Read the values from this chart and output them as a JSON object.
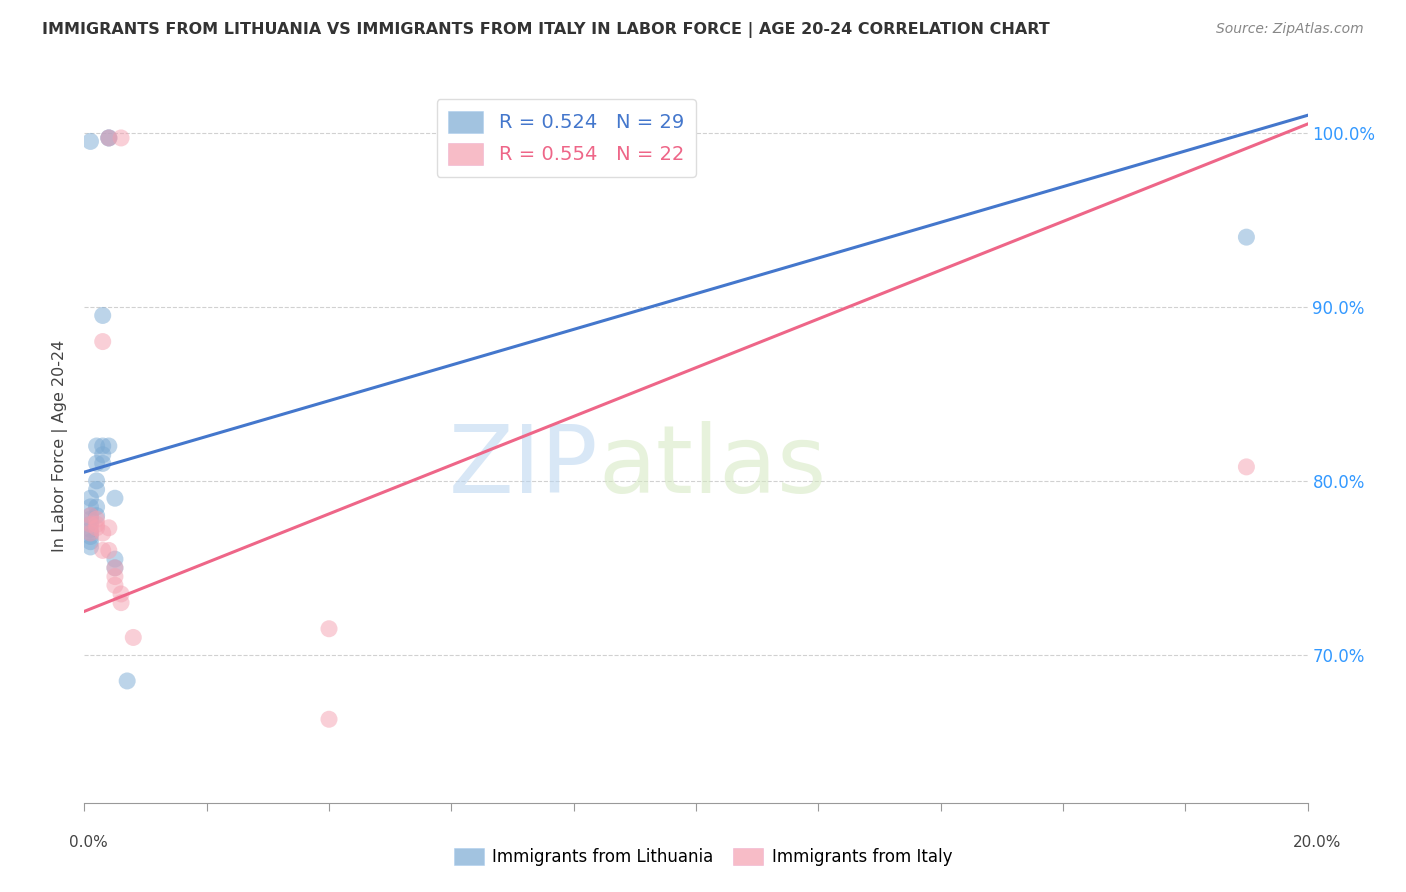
{
  "title": "IMMIGRANTS FROM LITHUANIA VS IMMIGRANTS FROM ITALY IN LABOR FORCE | AGE 20-24 CORRELATION CHART",
  "source": "Source: ZipAtlas.com",
  "ylabel": "In Labor Force | Age 20-24",
  "watermark_part1": "ZIP",
  "watermark_part2": "atlas",
  "legend_blue_R": 0.524,
  "legend_blue_N": 29,
  "legend_pink_R": 0.554,
  "legend_pink_N": 22,
  "legend_blue_label": "Immigrants from Lithuania",
  "legend_pink_label": "Immigrants from Italy",
  "blue_color": "#7BAAD4",
  "pink_color": "#F4A0B0",
  "blue_line_color": "#4477CC",
  "pink_line_color": "#EE6688",
  "xlim": [
    0.0,
    0.2
  ],
  "ylim": [
    0.615,
    1.025
  ],
  "yticks": [
    0.7,
    0.8,
    0.9,
    1.0
  ],
  "xticks": [
    0.0,
    0.02,
    0.04,
    0.06,
    0.08,
    0.1,
    0.12,
    0.14,
    0.16,
    0.18,
    0.2
  ],
  "blue_line": [
    [
      0.0,
      0.805
    ],
    [
      0.2,
      1.01
    ]
  ],
  "pink_line": [
    [
      0.0,
      0.725
    ],
    [
      0.2,
      1.005
    ]
  ],
  "blue_dots": [
    [
      0.001,
      0.995
    ],
    [
      0.004,
      0.997
    ],
    [
      0.004,
      0.997
    ],
    [
      0.004,
      0.82
    ],
    [
      0.003,
      0.895
    ],
    [
      0.003,
      0.82
    ],
    [
      0.003,
      0.815
    ],
    [
      0.003,
      0.81
    ],
    [
      0.002,
      0.82
    ],
    [
      0.002,
      0.81
    ],
    [
      0.002,
      0.8
    ],
    [
      0.002,
      0.795
    ],
    [
      0.002,
      0.785
    ],
    [
      0.002,
      0.78
    ],
    [
      0.001,
      0.79
    ],
    [
      0.001,
      0.785
    ],
    [
      0.001,
      0.78
    ],
    [
      0.001,
      0.778
    ],
    [
      0.001,
      0.775
    ],
    [
      0.001,
      0.772
    ],
    [
      0.001,
      0.77
    ],
    [
      0.001,
      0.768
    ],
    [
      0.001,
      0.765
    ],
    [
      0.001,
      0.762
    ],
    [
      0.005,
      0.79
    ],
    [
      0.005,
      0.755
    ],
    [
      0.005,
      0.75
    ],
    [
      0.007,
      0.685
    ],
    [
      0.19,
      0.94
    ]
  ],
  "pink_dots": [
    [
      0.004,
      0.997
    ],
    [
      0.006,
      0.997
    ],
    [
      0.003,
      0.88
    ],
    [
      0.001,
      0.78
    ],
    [
      0.001,
      0.775
    ],
    [
      0.001,
      0.77
    ],
    [
      0.002,
      0.778
    ],
    [
      0.002,
      0.775
    ],
    [
      0.002,
      0.773
    ],
    [
      0.003,
      0.77
    ],
    [
      0.003,
      0.76
    ],
    [
      0.004,
      0.773
    ],
    [
      0.004,
      0.76
    ],
    [
      0.005,
      0.75
    ],
    [
      0.005,
      0.745
    ],
    [
      0.005,
      0.74
    ],
    [
      0.006,
      0.735
    ],
    [
      0.006,
      0.73
    ],
    [
      0.008,
      0.71
    ],
    [
      0.19,
      0.808
    ],
    [
      0.04,
      0.715
    ],
    [
      0.04,
      0.663
    ]
  ],
  "grid_color": "#CCCCCC",
  "bg_color": "#FFFFFF"
}
